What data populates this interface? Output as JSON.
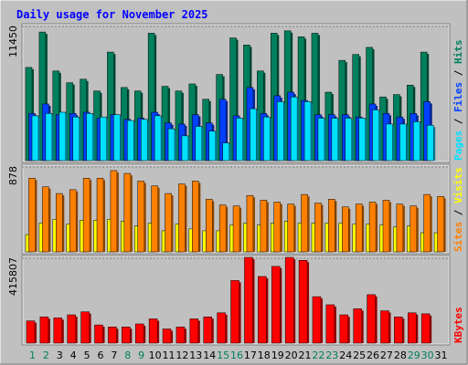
{
  "title": "Daily usage for November 2025",
  "panels": {
    "top": {
      "ytick": "11450",
      "side_labels": [
        "Pages",
        " / ",
        "Files",
        " / ",
        "Hits"
      ]
    },
    "middle": {
      "ytick": "878",
      "side_labels": [
        "Sites",
        " / ",
        "Visits"
      ]
    },
    "bottom": {
      "ytick": "415807",
      "side_labels": [
        "KBytes"
      ]
    }
  },
  "colors": {
    "background": "#c0c0c0",
    "plot_bg": "#c0c0c0",
    "title": "#0000ff",
    "hits": "#00805c",
    "files": "#0040ff",
    "pages": "#00e0ff",
    "sites": "#ff8000",
    "visits": "#ffff00",
    "kbytes": "#ff0000",
    "weekend_tick": "#00805c"
  },
  "chart_data": [
    {
      "type": "bar",
      "title": "Daily usage for November 2025",
      "categories": [
        "1",
        "2",
        "3",
        "4",
        "5",
        "6",
        "7",
        "8",
        "9",
        "10",
        "11",
        "12",
        "13",
        "14",
        "15",
        "16",
        "17",
        "18",
        "19",
        "20",
        "21",
        "22",
        "23",
        "24",
        "25",
        "26",
        "27",
        "28",
        "29",
        "30",
        "31"
      ],
      "ylim": [
        0,
        11450
      ],
      "series": [
        {
          "name": "Hits",
          "values": [
            7900,
            10900,
            7600,
            6600,
            6900,
            5900,
            9200,
            6200,
            5900,
            10800,
            6300,
            5900,
            6500,
            5200,
            7300,
            10400,
            9800,
            7600,
            10800,
            11000,
            10500,
            10800,
            5800,
            8500,
            9000,
            9600,
            5400,
            5600,
            6400,
            9200,
            null
          ]
        },
        {
          "name": "Files",
          "values": [
            4000,
            4800,
            3900,
            4000,
            4100,
            3600,
            3900,
            3500,
            3600,
            4100,
            3200,
            3100,
            3900,
            3200,
            5200,
            3800,
            6200,
            4000,
            5500,
            5800,
            5100,
            3900,
            3900,
            3900,
            3700,
            4800,
            4000,
            3700,
            4000,
            5000,
            null
          ]
        },
        {
          "name": "Pages",
          "values": [
            3800,
            4000,
            4100,
            3700,
            4000,
            3700,
            3900,
            3400,
            3500,
            3800,
            2700,
            2100,
            2900,
            2500,
            1500,
            3600,
            4400,
            3700,
            5000,
            5400,
            5000,
            3600,
            3600,
            3600,
            3600,
            4300,
            3100,
            3100,
            3300,
            3000,
            null
          ]
        }
      ]
    },
    {
      "type": "bar",
      "title": "",
      "categories": [
        "1",
        "2",
        "3",
        "4",
        "5",
        "6",
        "7",
        "8",
        "9",
        "10",
        "11",
        "12",
        "13",
        "14",
        "15",
        "16",
        "17",
        "18",
        "19",
        "20",
        "21",
        "22",
        "23",
        "24",
        "25",
        "26",
        "27",
        "28",
        "29",
        "30",
        "31"
      ],
      "ylim": [
        0,
        878
      ],
      "series": [
        {
          "name": "Visits",
          "values": [
            180,
            300,
            340,
            290,
            330,
            330,
            340,
            320,
            270,
            300,
            220,
            290,
            240,
            220,
            220,
            280,
            300,
            280,
            300,
            320,
            300,
            300,
            300,
            300,
            290,
            290,
            280,
            260,
            270,
            200,
            200
          ]
        },
        {
          "name": "Sites",
          "values": [
            770,
            680,
            610,
            650,
            770,
            770,
            850,
            820,
            740,
            690,
            610,
            710,
            740,
            550,
            490,
            480,
            590,
            540,
            520,
            500,
            600,
            510,
            550,
            470,
            500,
            520,
            540,
            500,
            480,
            600,
            580
          ]
        }
      ]
    },
    {
      "type": "bar",
      "title": "",
      "categories": [
        "1",
        "2",
        "3",
        "4",
        "5",
        "6",
        "7",
        "8",
        "9",
        "10",
        "11",
        "12",
        "13",
        "14",
        "15",
        "16",
        "17",
        "18",
        "19",
        "20",
        "21",
        "22",
        "23",
        "24",
        "25",
        "26",
        "27",
        "28",
        "29",
        "30",
        "31"
      ],
      "ylim": [
        0,
        415807
      ],
      "series": [
        {
          "name": "KBytes",
          "values": [
            110000,
            130000,
            125000,
            140000,
            155000,
            90000,
            80000,
            80000,
            95000,
            120000,
            70000,
            80000,
            120000,
            130000,
            150000,
            310000,
            430000,
            330000,
            380000,
            430000,
            410000,
            230000,
            190000,
            140000,
            170000,
            240000,
            160000,
            130000,
            150000,
            145000,
            null
          ]
        }
      ]
    }
  ]
}
